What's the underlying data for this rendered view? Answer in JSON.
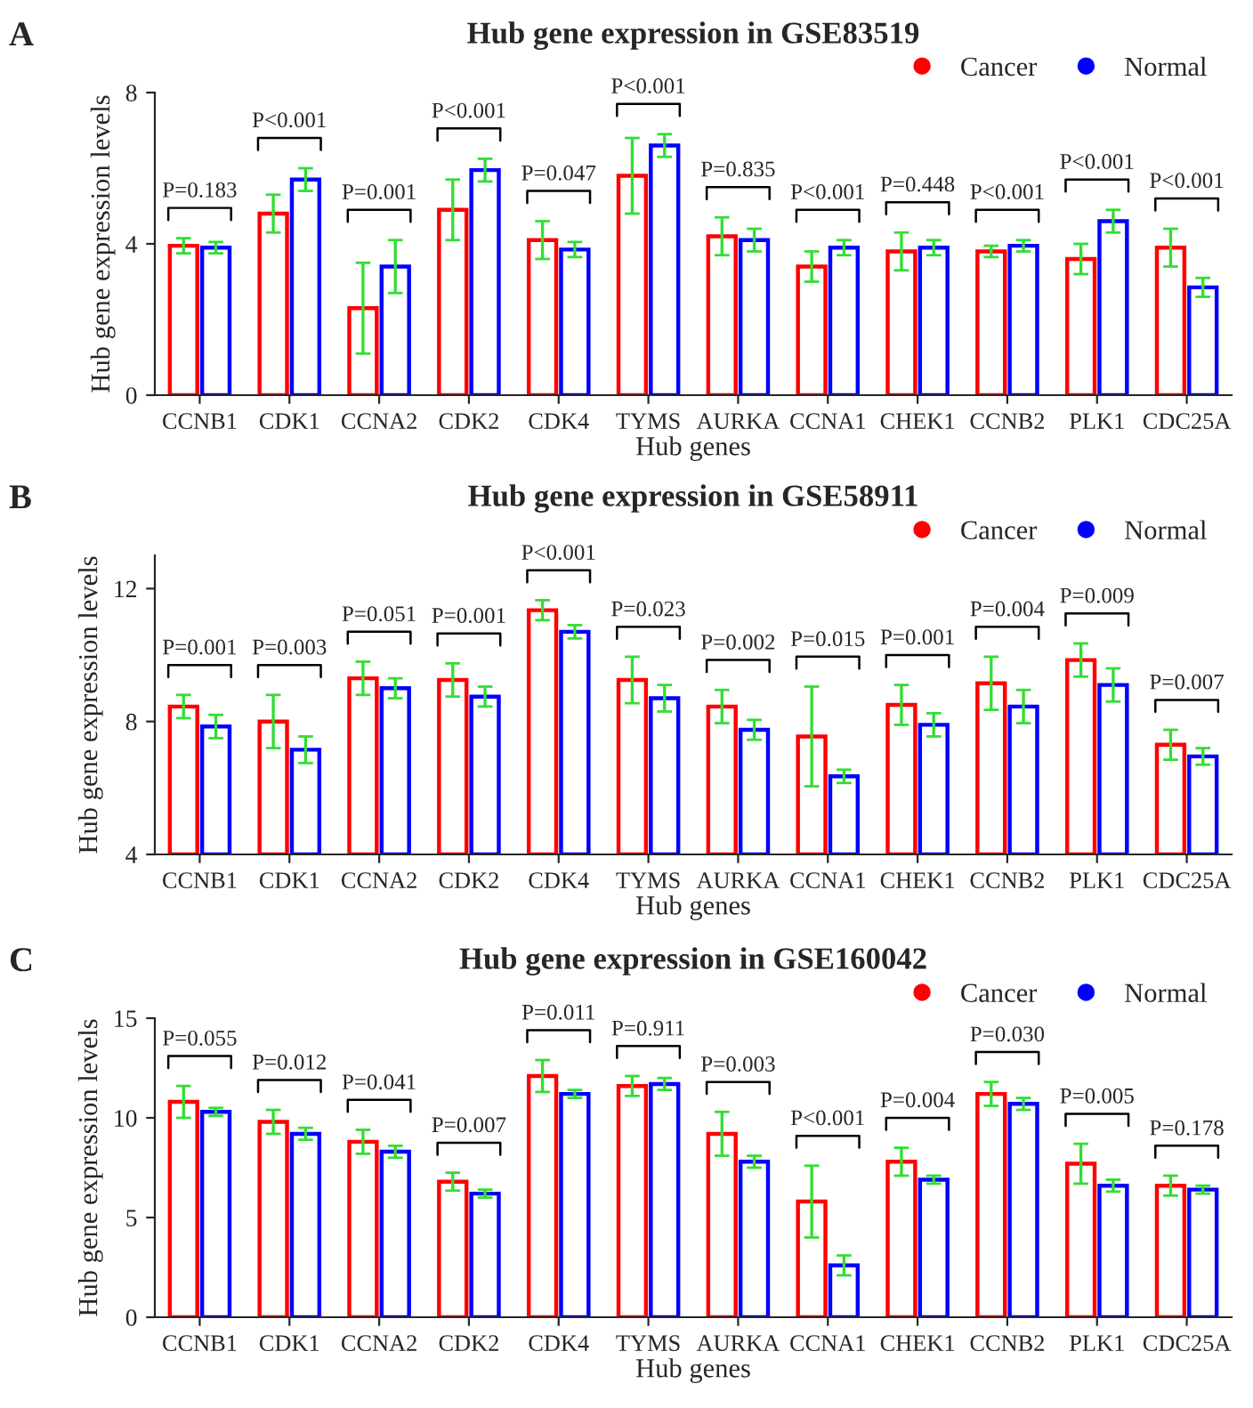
{
  "chart_data": [
    {
      "type": "bar",
      "title": "Hub gene expression in GSE83519",
      "xlabel": "Hub genes",
      "ylabel": "Hub gene expression levels",
      "legend": "top right",
      "marker": "circle",
      "grid": false,
      "categories": [
        "CCNB1",
        "CDK1",
        "CCNA2",
        "CDK2",
        "CDK4",
        "TYMS",
        "AURKA",
        "CCNA1",
        "CHEK1",
        "CCNB2",
        "PLK1",
        "CDC25A"
      ],
      "ylim": [
        0,
        8
      ],
      "yticks": [
        0,
        4,
        8
      ],
      "series": [
        {
          "name": "Cancer",
          "color": "#ff0000",
          "values": [
            3.95,
            4.8,
            2.3,
            4.9,
            4.1,
            5.8,
            4.2,
            3.4,
            3.8,
            3.8,
            3.6,
            3.9
          ],
          "errors": [
            0.2,
            0.5,
            1.2,
            0.8,
            0.5,
            1.0,
            0.5,
            0.4,
            0.5,
            0.15,
            0.4,
            0.5
          ]
        },
        {
          "name": "Normal",
          "color": "#0000ff",
          "values": [
            3.9,
            5.7,
            3.4,
            5.95,
            3.85,
            6.6,
            4.1,
            3.9,
            3.9,
            3.95,
            4.6,
            2.85
          ],
          "errors": [
            0.15,
            0.3,
            0.7,
            0.3,
            0.2,
            0.3,
            0.3,
            0.2,
            0.2,
            0.15,
            0.3,
            0.25
          ]
        }
      ],
      "annotations": [
        "A",
        "P=0.183",
        "P<0.001",
        "P=0.001",
        "P<0.001",
        "P=0.047",
        "P<0.001",
        "P=0.835",
        "P<0.001",
        "P=0.448",
        "P<0.001",
        "P<0.001",
        "P<0.001"
      ]
    },
    {
      "type": "bar",
      "title": "Hub gene expression in GSE58911",
      "xlabel": "Hub genes",
      "ylabel": "Hub gene expression levels",
      "legend": "top right",
      "marker": "circle",
      "grid": false,
      "categories": [
        "CCNB1",
        "CDK1",
        "CCNA2",
        "CDK2",
        "CDK4",
        "TYMS",
        "AURKA",
        "CCNA1",
        "CHEK1",
        "CCNB2",
        "PLK1",
        "CDC25A"
      ],
      "ylim": [
        4,
        13
      ],
      "yticks": [
        4,
        8,
        12
      ],
      "series": [
        {
          "name": "Cancer",
          "color": "#ff0000",
          "values": [
            8.45,
            8.0,
            9.3,
            9.25,
            11.35,
            9.25,
            8.45,
            7.55,
            8.5,
            9.15,
            9.85,
            7.3
          ],
          "errors": [
            0.35,
            0.8,
            0.5,
            0.5,
            0.3,
            0.7,
            0.5,
            1.5,
            0.6,
            0.8,
            0.5,
            0.45
          ]
        },
        {
          "name": "Normal",
          "color": "#0000ff",
          "values": [
            7.85,
            7.15,
            9.0,
            8.75,
            10.7,
            8.7,
            7.75,
            6.35,
            7.9,
            8.45,
            9.1,
            6.95
          ],
          "errors": [
            0.35,
            0.4,
            0.3,
            0.3,
            0.2,
            0.4,
            0.3,
            0.2,
            0.35,
            0.5,
            0.5,
            0.25
          ]
        }
      ],
      "annotations": [
        "B",
        "P=0.001",
        "P=0.003",
        "P=0.051",
        "P=0.001",
        "P<0.001",
        "P=0.023",
        "P=0.002",
        "P=0.015",
        "P=0.001",
        "P=0.004",
        "P=0.009",
        "P=0.007"
      ]
    },
    {
      "type": "bar",
      "title": "Hub gene expression in GSE160042",
      "xlabel": "Hub genes",
      "ylabel": "Hub gene expression levels",
      "legend": "top right",
      "marker": "circle",
      "grid": false,
      "categories": [
        "CCNB1",
        "CDK1",
        "CCNA2",
        "CDK2",
        "CDK4",
        "TYMS",
        "AURKA",
        "CCNA1",
        "CHEK1",
        "CCNB2",
        "PLK1",
        "CDC25A"
      ],
      "ylim": [
        0,
        15
      ],
      "yticks": [
        0,
        5,
        10,
        15
      ],
      "series": [
        {
          "name": "Cancer",
          "color": "#ff0000",
          "values": [
            10.8,
            9.8,
            8.8,
            6.8,
            12.1,
            11.6,
            9.2,
            5.8,
            7.8,
            11.2,
            7.7,
            6.6
          ],
          "errors": [
            0.8,
            0.6,
            0.6,
            0.45,
            0.8,
            0.5,
            1.1,
            1.8,
            0.7,
            0.6,
            1.0,
            0.5
          ]
        },
        {
          "name": "Normal",
          "color": "#0000ff",
          "values": [
            10.3,
            9.2,
            8.3,
            6.2,
            11.2,
            11.7,
            7.8,
            2.6,
            6.9,
            10.7,
            6.6,
            6.4
          ],
          "errors": [
            0.2,
            0.3,
            0.3,
            0.2,
            0.2,
            0.3,
            0.3,
            0.5,
            0.2,
            0.3,
            0.3,
            0.2
          ]
        }
      ],
      "annotations": [
        "C",
        "P=0.055",
        "P=0.012",
        "P=0.041",
        "P=0.007",
        "P=0.011",
        "P=0.911",
        "P=0.003",
        "P<0.001",
        "P=0.004",
        "P=0.030",
        "P=0.005",
        "P=0.178"
      ]
    }
  ]
}
